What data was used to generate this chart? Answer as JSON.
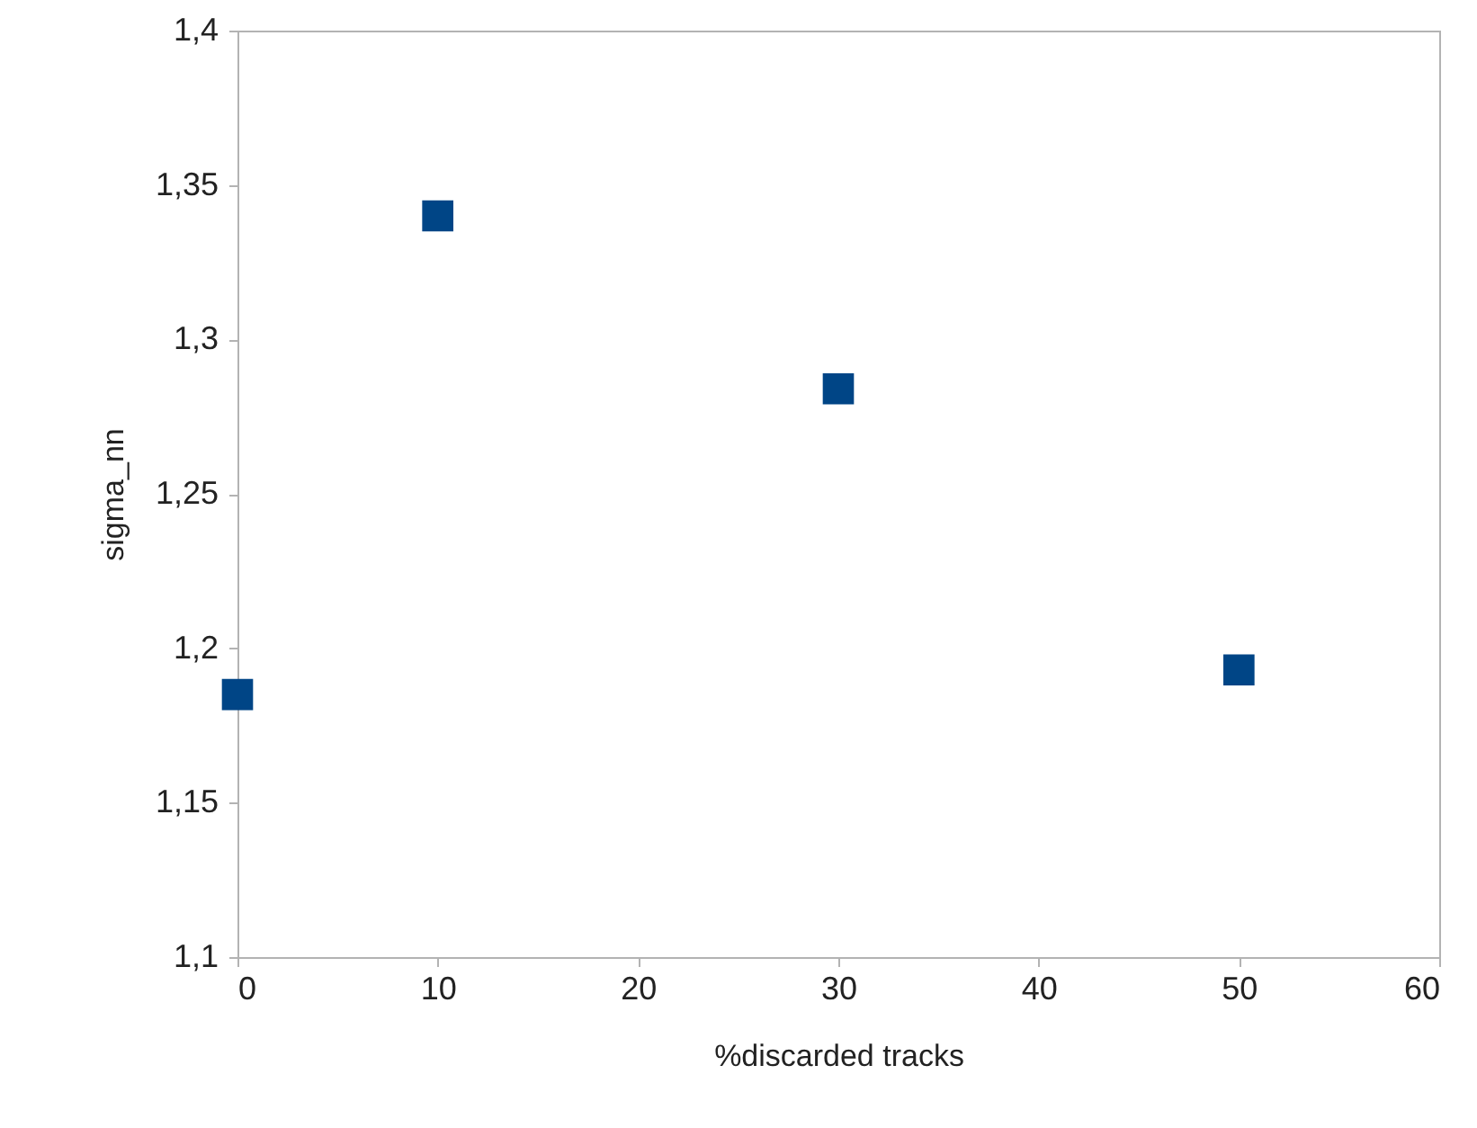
{
  "chart_data": {
    "type": "scatter",
    "xlabel": "%discarded tracks",
    "ylabel": "sigma_nn",
    "x": [
      0,
      10,
      30,
      50
    ],
    "series": [
      {
        "color": "#004586",
        "values": [
          1.185,
          1.34,
          1.284,
          1.193
        ]
      }
    ],
    "xlim": [
      0,
      60
    ],
    "xticks": [
      0,
      10,
      20,
      30,
      40,
      50,
      60
    ],
    "ylim": [
      1.1,
      1.4
    ],
    "yticks": [
      {
        "value": 1.1,
        "label": "1,1"
      },
      {
        "value": 1.15,
        "label": "1,15"
      },
      {
        "value": 1.2,
        "label": "1,2"
      },
      {
        "value": 1.25,
        "label": "1,25"
      },
      {
        "value": 1.3,
        "label": "1,3"
      },
      {
        "value": 1.35,
        "label": "1,35"
      },
      {
        "value": 1.4,
        "label": "1,4"
      }
    ],
    "grid": false,
    "marker": "square"
  }
}
